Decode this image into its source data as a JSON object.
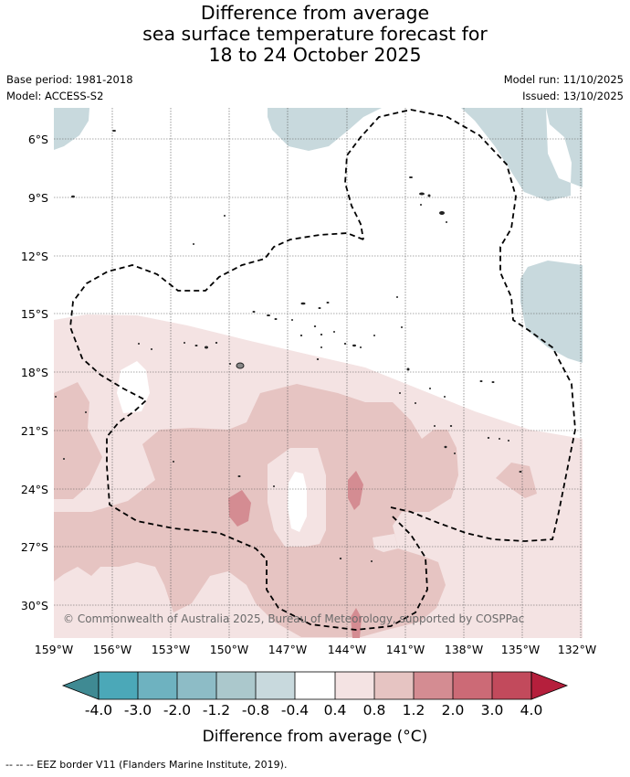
{
  "title": {
    "line1": "Difference from average",
    "line2": "sea surface temperature forecast for",
    "line3": "18 to 24 October 2025"
  },
  "meta": {
    "base_period": "Base period: 1981-2018",
    "model": "Model: ACCESS-S2",
    "model_run": "Model run: 11/10/2025",
    "issued": "Issued: 13/10/2025"
  },
  "map": {
    "lat_labels": [
      "6°S",
      "9°S",
      "12°S",
      "15°S",
      "18°S",
      "21°S",
      "24°S",
      "27°S",
      "30°S"
    ],
    "lon_labels": [
      "159°W",
      "156°W",
      "153°W",
      "150°W",
      "147°W",
      "144°W",
      "141°W",
      "138°W",
      "135°W",
      "132°W"
    ],
    "copyright": "© Commonwealth of Australia 2025, Bureau of Meteorology, supported by COSPPac"
  },
  "legend": {
    "ticks": [
      "-4.0",
      "-3.0",
      "-2.0",
      "-1.2",
      "-0.8",
      "-0.4",
      "0.4",
      "0.8",
      "1.2",
      "2.0",
      "3.0",
      "4.0"
    ],
    "colors": [
      "#4ba8b8",
      "#6eb2c0",
      "#8dbcc6",
      "#abc8cc",
      "#c8d9dd",
      "#ffffff",
      "#f4e3e3",
      "#e6c4c2",
      "#d48c92",
      "#cc6a76",
      "#c24a5c"
    ],
    "under_color": "#3f8a93",
    "over_color": "#b51f3c",
    "label": "Difference from average (°C)"
  },
  "footnote": "--  --  -- EEZ border V11 (Flanders Marine Institute, 2019)."
}
